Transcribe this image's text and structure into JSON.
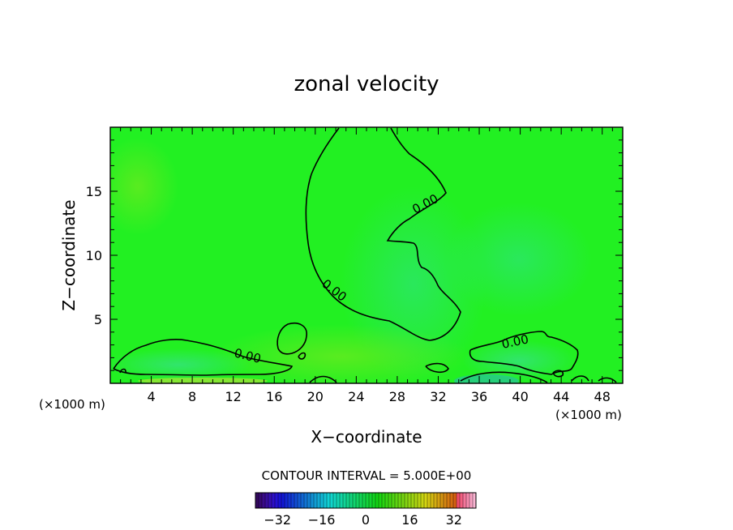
{
  "chart_data": {
    "type": "heatmap",
    "title": "zonal velocity",
    "xlabel": "X−coordinate",
    "ylabel": "Z−coordinate",
    "x_unit_left": "(×1000 m)",
    "x_unit_right": "(×1000 m)",
    "xlim": [
      0,
      50
    ],
    "ylim": [
      0,
      20
    ],
    "x_ticks": [
      4,
      8,
      12,
      16,
      20,
      24,
      28,
      32,
      36,
      40,
      44,
      48
    ],
    "x_tick_labels": [
      "4",
      "8",
      "12",
      "16",
      "20",
      "24",
      "28",
      "32",
      "36",
      "40",
      "44",
      "48"
    ],
    "y_ticks": [
      5,
      10,
      15
    ],
    "y_tick_labels": [
      "5",
      "10",
      "15"
    ],
    "contour_level": 0,
    "contour_labels": [
      "0.00",
      "0.00",
      "0.00",
      "0.00"
    ],
    "contour_interval_text": "CONTOUR INTERVAL = 5.000E+00",
    "colorbar": {
      "range": [
        -40,
        40
      ],
      "ticks": [
        -32,
        -16,
        0,
        16,
        32
      ],
      "tick_labels": [
        "−32",
        "−16",
        "0",
        "16",
        "32"
      ]
    },
    "field_color": "#22f022",
    "contour_color": "#000000"
  }
}
